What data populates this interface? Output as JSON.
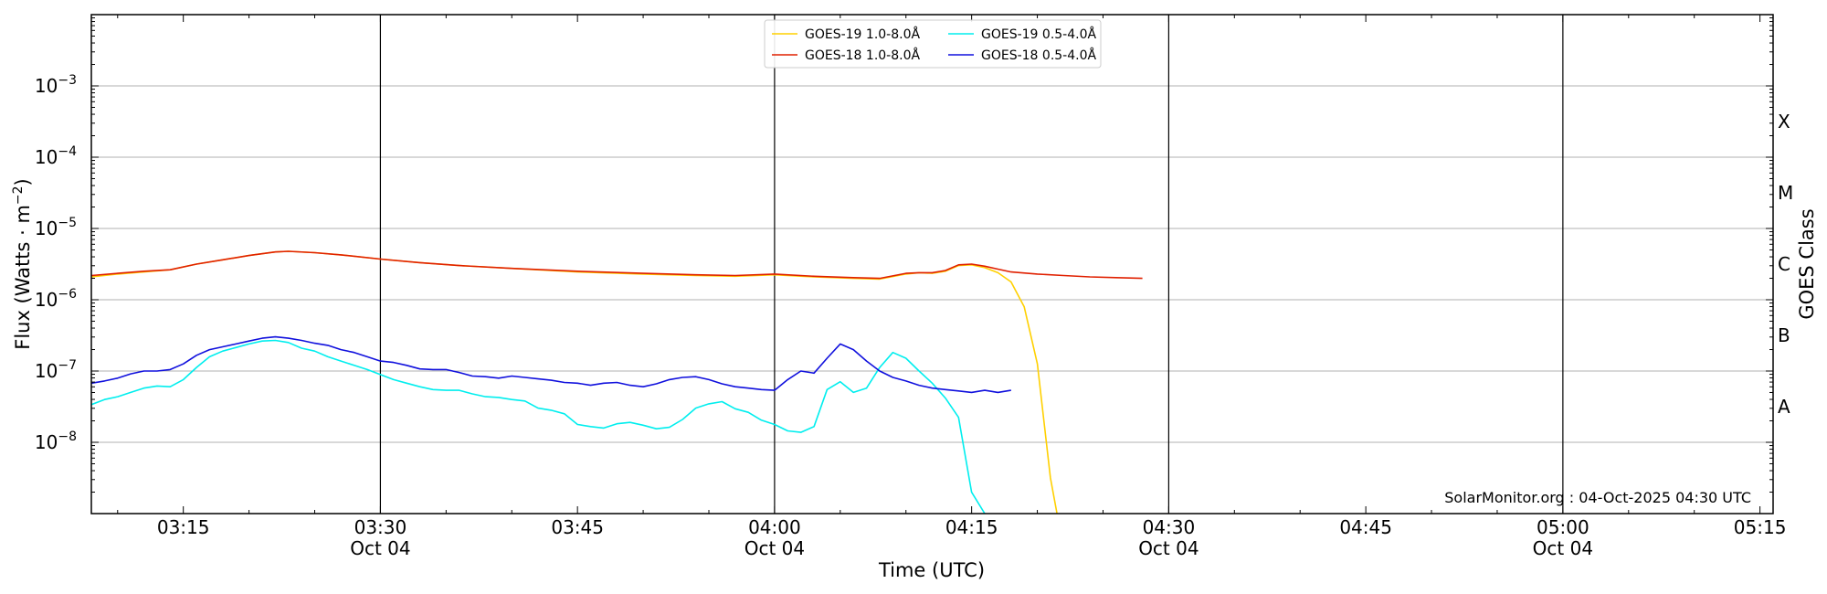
{
  "chart_data": {
    "type": "line",
    "ylabel": "Flux (Watts · m⁻²)",
    "ylabel_main": "Flux (Watts · m",
    "ylabel_sup": "−2",
    "ylabel_close": ")",
    "xlabel": "Time (UTC)",
    "right_axis_label": "GOES Class",
    "credit": "SolarMonitor.org : 04-Oct-2025 04:30 UTC",
    "log_scale_y": true,
    "xlim_minutes": [
      188,
      316
    ],
    "ylim": [
      1e-09,
      0.01
    ],
    "grid": "horizontal at decades",
    "legend_position": "top-center",
    "x_ticks": [
      {
        "minute": 195,
        "label": "03:15",
        "date": ""
      },
      {
        "minute": 210,
        "label": "03:30",
        "date": "Oct 04"
      },
      {
        "minute": 225,
        "label": "03:45",
        "date": ""
      },
      {
        "minute": 240,
        "label": "04:00",
        "date": "Oct 04"
      },
      {
        "minute": 255,
        "label": "04:15",
        "date": ""
      },
      {
        "minute": 270,
        "label": "04:30",
        "date": "Oct 04"
      },
      {
        "minute": 285,
        "label": "04:45",
        "date": ""
      },
      {
        "minute": 300,
        "label": "05:00",
        "date": "Oct 04"
      },
      {
        "minute": 315,
        "label": "05:15",
        "date": ""
      }
    ],
    "y_ticks": [
      {
        "exp": -8,
        "base": "10",
        "sup": "−8"
      },
      {
        "exp": -7,
        "base": "10",
        "sup": "−7"
      },
      {
        "exp": -6,
        "base": "10",
        "sup": "−6"
      },
      {
        "exp": -5,
        "base": "10",
        "sup": "−5"
      },
      {
        "exp": -4,
        "base": "10",
        "sup": "−4"
      },
      {
        "exp": -3,
        "base": "10",
        "sup": "−3"
      }
    ],
    "day_lines_minutes": [
      210,
      240,
      270,
      300
    ],
    "goes_classes": [
      {
        "label": "A",
        "exp": -7.5
      },
      {
        "label": "B",
        "exp": -6.5
      },
      {
        "label": "C",
        "exp": -5.5
      },
      {
        "label": "M",
        "exp": -4.5
      },
      {
        "label": "X",
        "exp": -3.5
      }
    ],
    "series": [
      {
        "name": "GOES-19 1.0-8.0Å",
        "color": "#ffd000",
        "points": [
          [
            188,
            -5.68
          ],
          [
            190,
            -5.64
          ],
          [
            192,
            -5.61
          ],
          [
            194,
            -5.58
          ],
          [
            196,
            -5.5
          ],
          [
            198,
            -5.44
          ],
          [
            200,
            -5.38
          ],
          [
            202,
            -5.33
          ],
          [
            203,
            -5.32
          ],
          [
            205,
            -5.34
          ],
          [
            207,
            -5.37
          ],
          [
            210,
            -5.43
          ],
          [
            213,
            -5.48
          ],
          [
            216,
            -5.52
          ],
          [
            220,
            -5.56
          ],
          [
            225,
            -5.61
          ],
          [
            230,
            -5.64
          ],
          [
            234,
            -5.66
          ],
          [
            237,
            -5.67
          ],
          [
            240,
            -5.65
          ],
          [
            243,
            -5.68
          ],
          [
            246,
            -5.7
          ],
          [
            248,
            -5.71
          ],
          [
            250,
            -5.64
          ],
          [
            251,
            -5.62
          ],
          [
            252,
            -5.63
          ],
          [
            253,
            -5.6
          ],
          [
            254,
            -5.52
          ],
          [
            255,
            -5.51
          ],
          [
            256,
            -5.55
          ],
          [
            257,
            -5.62
          ],
          [
            258,
            -5.75
          ],
          [
            259,
            -6.1
          ],
          [
            260,
            -6.9
          ],
          [
            261,
            -8.5
          ],
          [
            261.5,
            -9.0
          ]
        ]
      },
      {
        "name": "GOES-18 1.0-8.0Å",
        "color": "#e02000",
        "points": [
          [
            188,
            -5.66
          ],
          [
            190,
            -5.63
          ],
          [
            192,
            -5.6
          ],
          [
            194,
            -5.58
          ],
          [
            196,
            -5.5
          ],
          [
            198,
            -5.44
          ],
          [
            200,
            -5.38
          ],
          [
            202,
            -5.33
          ],
          [
            203,
            -5.32
          ],
          [
            205,
            -5.34
          ],
          [
            207,
            -5.37
          ],
          [
            210,
            -5.43
          ],
          [
            213,
            -5.48
          ],
          [
            216,
            -5.52
          ],
          [
            220,
            -5.56
          ],
          [
            225,
            -5.6
          ],
          [
            230,
            -5.63
          ],
          [
            234,
            -5.65
          ],
          [
            237,
            -5.66
          ],
          [
            240,
            -5.64
          ],
          [
            243,
            -5.67
          ],
          [
            246,
            -5.69
          ],
          [
            248,
            -5.7
          ],
          [
            250,
            -5.63
          ],
          [
            251,
            -5.62
          ],
          [
            252,
            -5.62
          ],
          [
            253,
            -5.59
          ],
          [
            254,
            -5.51
          ],
          [
            255,
            -5.5
          ],
          [
            256,
            -5.53
          ],
          [
            257,
            -5.57
          ],
          [
            258,
            -5.61
          ],
          [
            260,
            -5.64
          ],
          [
            262,
            -5.66
          ],
          [
            264,
            -5.68
          ],
          [
            266,
            -5.69
          ],
          [
            268,
            -5.7
          ]
        ]
      },
      {
        "name": "GOES-19 0.5-4.0Å",
        "color": "#00eeee",
        "points": [
          [
            188,
            -7.47
          ],
          [
            189,
            -7.4
          ],
          [
            190,
            -7.36
          ],
          [
            191,
            -7.3
          ],
          [
            192,
            -7.24
          ],
          [
            193,
            -7.21
          ],
          [
            194,
            -7.22
          ],
          [
            195,
            -7.12
          ],
          [
            196,
            -6.95
          ],
          [
            197,
            -6.8
          ],
          [
            198,
            -6.72
          ],
          [
            199,
            -6.67
          ],
          [
            200,
            -6.62
          ],
          [
            201,
            -6.58
          ],
          [
            202,
            -6.57
          ],
          [
            203,
            -6.6
          ],
          [
            204,
            -6.68
          ],
          [
            205,
            -6.72
          ],
          [
            206,
            -6.8
          ],
          [
            207,
            -6.86
          ],
          [
            208,
            -6.92
          ],
          [
            209,
            -6.98
          ],
          [
            210,
            -7.05
          ],
          [
            211,
            -7.12
          ],
          [
            212,
            -7.17
          ],
          [
            213,
            -7.22
          ],
          [
            214,
            -7.26
          ],
          [
            215,
            -7.27
          ],
          [
            216,
            -7.27
          ],
          [
            217,
            -7.32
          ],
          [
            218,
            -7.36
          ],
          [
            219,
            -7.37
          ],
          [
            220,
            -7.4
          ],
          [
            221,
            -7.42
          ],
          [
            222,
            -7.52
          ],
          [
            223,
            -7.55
          ],
          [
            224,
            -7.6
          ],
          [
            225,
            -7.75
          ],
          [
            226,
            -7.78
          ],
          [
            227,
            -7.8
          ],
          [
            228,
            -7.74
          ],
          [
            229,
            -7.72
          ],
          [
            230,
            -7.76
          ],
          [
            231,
            -7.81
          ],
          [
            232,
            -7.79
          ],
          [
            233,
            -7.68
          ],
          [
            234,
            -7.52
          ],
          [
            235,
            -7.46
          ],
          [
            236,
            -7.43
          ],
          [
            237,
            -7.53
          ],
          [
            238,
            -7.58
          ],
          [
            239,
            -7.69
          ],
          [
            240,
            -7.75
          ],
          [
            241,
            -7.84
          ],
          [
            242,
            -7.86
          ],
          [
            243,
            -7.78
          ],
          [
            244,
            -7.26
          ],
          [
            245,
            -7.15
          ],
          [
            246,
            -7.3
          ],
          [
            247,
            -7.24
          ],
          [
            248,
            -6.95
          ],
          [
            249,
            -6.74
          ],
          [
            250,
            -6.82
          ],
          [
            251,
            -7.0
          ],
          [
            252,
            -7.17
          ],
          [
            253,
            -7.38
          ],
          [
            254,
            -7.65
          ],
          [
            255,
            -8.7
          ],
          [
            256,
            -9.0
          ]
        ]
      },
      {
        "name": "GOES-18 0.5-4.0Å",
        "color": "#1010dd",
        "points": [
          [
            188,
            -7.17
          ],
          [
            189,
            -7.14
          ],
          [
            190,
            -7.1
          ],
          [
            191,
            -7.04
          ],
          [
            192,
            -7.0
          ],
          [
            193,
            -7.0
          ],
          [
            194,
            -6.98
          ],
          [
            195,
            -6.9
          ],
          [
            196,
            -6.78
          ],
          [
            197,
            -6.7
          ],
          [
            198,
            -6.66
          ],
          [
            199,
            -6.62
          ],
          [
            200,
            -6.58
          ],
          [
            201,
            -6.54
          ],
          [
            202,
            -6.52
          ],
          [
            203,
            -6.54
          ],
          [
            204,
            -6.57
          ],
          [
            205,
            -6.61
          ],
          [
            206,
            -6.64
          ],
          [
            207,
            -6.7
          ],
          [
            208,
            -6.74
          ],
          [
            209,
            -6.8
          ],
          [
            210,
            -6.86
          ],
          [
            211,
            -6.88
          ],
          [
            212,
            -6.92
          ],
          [
            213,
            -6.97
          ],
          [
            214,
            -6.98
          ],
          [
            215,
            -6.98
          ],
          [
            216,
            -7.02
          ],
          [
            217,
            -7.07
          ],
          [
            218,
            -7.08
          ],
          [
            219,
            -7.1
          ],
          [
            220,
            -7.07
          ],
          [
            221,
            -7.09
          ],
          [
            222,
            -7.11
          ],
          [
            223,
            -7.13
          ],
          [
            224,
            -7.16
          ],
          [
            225,
            -7.17
          ],
          [
            226,
            -7.2
          ],
          [
            227,
            -7.17
          ],
          [
            228,
            -7.16
          ],
          [
            229,
            -7.2
          ],
          [
            230,
            -7.22
          ],
          [
            231,
            -7.18
          ],
          [
            232,
            -7.12
          ],
          [
            233,
            -7.09
          ],
          [
            234,
            -7.08
          ],
          [
            235,
            -7.12
          ],
          [
            236,
            -7.18
          ],
          [
            237,
            -7.22
          ],
          [
            238,
            -7.24
          ],
          [
            239,
            -7.26
          ],
          [
            240,
            -7.27
          ],
          [
            241,
            -7.12
          ],
          [
            242,
            -7.0
          ],
          [
            243,
            -7.03
          ],
          [
            244,
            -6.82
          ],
          [
            245,
            -6.62
          ],
          [
            246,
            -6.7
          ],
          [
            247,
            -6.86
          ],
          [
            248,
            -7.0
          ],
          [
            249,
            -7.09
          ],
          [
            250,
            -7.14
          ],
          [
            251,
            -7.2
          ],
          [
            252,
            -7.24
          ],
          [
            253,
            -7.26
          ],
          [
            254,
            -7.28
          ],
          [
            255,
            -7.3
          ],
          [
            256,
            -7.27
          ],
          [
            257,
            -7.3
          ],
          [
            258,
            -7.27
          ]
        ]
      }
    ]
  }
}
